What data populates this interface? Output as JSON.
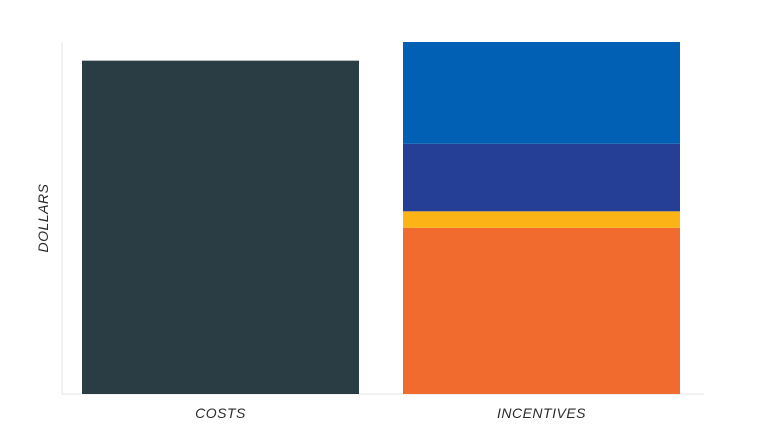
{
  "chart_data": {
    "type": "bar",
    "stacked": true,
    "title": "",
    "xlabel": "",
    "ylabel": "DOLLARS",
    "categories": [
      "COSTS",
      "INCENTIVES"
    ],
    "ylim": [
      0,
      100
    ],
    "grid": false,
    "legend": "none",
    "series": [
      {
        "color": "#2a3d45",
        "values": [
          94.7,
          0
        ]
      },
      {
        "color": "#f26b2e",
        "values": [
          0,
          47.2
        ]
      },
      {
        "color": "#fcb316",
        "values": [
          0,
          4.7
        ]
      },
      {
        "color": "#253f97",
        "values": [
          0,
          19.2
        ]
      },
      {
        "color": "#0160b3",
        "values": [
          0,
          28.9
        ]
      }
    ]
  }
}
